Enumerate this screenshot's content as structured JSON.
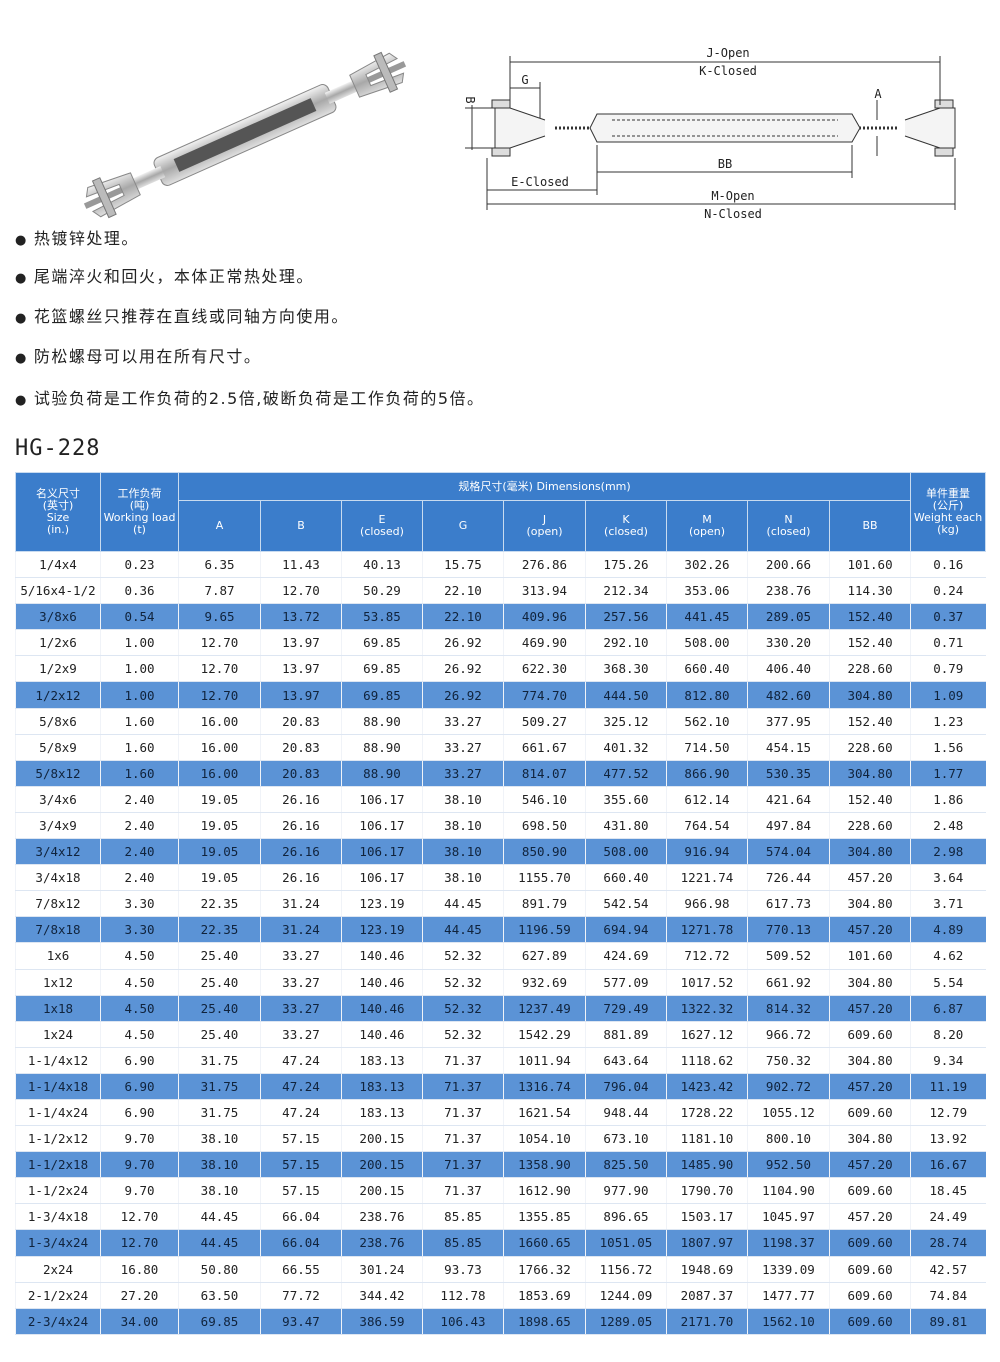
{
  "diagram": {
    "j_open": "J-Open",
    "k_closed": "K-Closed",
    "g": "G",
    "b": "B",
    "a": "A",
    "bb": "BB",
    "e_closed": "E-Closed",
    "m_open": "M-Open",
    "n_closed": "N-Closed"
  },
  "bullets": [
    "热镀锌处理。",
    "尾端淬火和回火，本体正常热处理。",
    "花篮螺丝只推荐在直线或同轴方向使用。",
    "防松螺母可以用在所有尺寸。",
    "试验负荷是工作负荷的2.5倍,破断负荷是工作负荷的5倍。"
  ],
  "title": "HG-228",
  "table": {
    "header": {
      "size": [
        "名义尺寸",
        "(英寸)",
        "Size",
        "(in.)"
      ],
      "load": [
        "工作负荷",
        "(吨)",
        "Working load",
        "(t)"
      ],
      "dimensions": "规格尺寸(毫米) Dimensions(mm)",
      "columns": [
        [
          "A"
        ],
        [
          "B"
        ],
        [
          "E",
          "(closed)"
        ],
        [
          "G"
        ],
        [
          "J",
          "(open)"
        ],
        [
          "K",
          "(closed)"
        ],
        [
          "M",
          "(open)"
        ],
        [
          "N",
          "(closed)"
        ],
        [
          "BB"
        ]
      ],
      "weight": [
        "单件重量",
        "(公斤)",
        "Weight each",
        "(kg)"
      ]
    },
    "rows": [
      [
        "1/4x4",
        "0.23",
        "6.35",
        "11.43",
        "40.13",
        "15.75",
        "276.86",
        "175.26",
        "302.26",
        "200.66",
        "101.60",
        "0.16"
      ],
      [
        "5/16x4-1/2",
        "0.36",
        "7.87",
        "12.70",
        "50.29",
        "22.10",
        "313.94",
        "212.34",
        "353.06",
        "238.76",
        "114.30",
        "0.24"
      ],
      [
        "3/8x6",
        "0.54",
        "9.65",
        "13.72",
        "53.85",
        "22.10",
        "409.96",
        "257.56",
        "441.45",
        "289.05",
        "152.40",
        "0.37"
      ],
      [
        "1/2x6",
        "1.00",
        "12.70",
        "13.97",
        "69.85",
        "26.92",
        "469.90",
        "292.10",
        "508.00",
        "330.20",
        "152.40",
        "0.71"
      ],
      [
        "1/2x9",
        "1.00",
        "12.70",
        "13.97",
        "69.85",
        "26.92",
        "622.30",
        "368.30",
        "660.40",
        "406.40",
        "228.60",
        "0.79"
      ],
      [
        "1/2x12",
        "1.00",
        "12.70",
        "13.97",
        "69.85",
        "26.92",
        "774.70",
        "444.50",
        "812.80",
        "482.60",
        "304.80",
        "1.09"
      ],
      [
        "5/8x6",
        "1.60",
        "16.00",
        "20.83",
        "88.90",
        "33.27",
        "509.27",
        "325.12",
        "562.10",
        "377.95",
        "152.40",
        "1.23"
      ],
      [
        "5/8x9",
        "1.60",
        "16.00",
        "20.83",
        "88.90",
        "33.27",
        "661.67",
        "401.32",
        "714.50",
        "454.15",
        "228.60",
        "1.56"
      ],
      [
        "5/8x12",
        "1.60",
        "16.00",
        "20.83",
        "88.90",
        "33.27",
        "814.07",
        "477.52",
        "866.90",
        "530.35",
        "304.80",
        "1.77"
      ],
      [
        "3/4x6",
        "2.40",
        "19.05",
        "26.16",
        "106.17",
        "38.10",
        "546.10",
        "355.60",
        "612.14",
        "421.64",
        "152.40",
        "1.86"
      ],
      [
        "3/4x9",
        "2.40",
        "19.05",
        "26.16",
        "106.17",
        "38.10",
        "698.50",
        "431.80",
        "764.54",
        "497.84",
        "228.60",
        "2.48"
      ],
      [
        "3/4x12",
        "2.40",
        "19.05",
        "26.16",
        "106.17",
        "38.10",
        "850.90",
        "508.00",
        "916.94",
        "574.04",
        "304.80",
        "2.98"
      ],
      [
        "3/4x18",
        "2.40",
        "19.05",
        "26.16",
        "106.17",
        "38.10",
        "1155.70",
        "660.40",
        "1221.74",
        "726.44",
        "457.20",
        "3.64"
      ],
      [
        "7/8x12",
        "3.30",
        "22.35",
        "31.24",
        "123.19",
        "44.45",
        "891.79",
        "542.54",
        "966.98",
        "617.73",
        "304.80",
        "3.71"
      ],
      [
        "7/8x18",
        "3.30",
        "22.35",
        "31.24",
        "123.19",
        "44.45",
        "1196.59",
        "694.94",
        "1271.78",
        "770.13",
        "457.20",
        "4.89"
      ],
      [
        "1x6",
        "4.50",
        "25.40",
        "33.27",
        "140.46",
        "52.32",
        "627.89",
        "424.69",
        "712.72",
        "509.52",
        "101.60",
        "4.62"
      ],
      [
        "1x12",
        "4.50",
        "25.40",
        "33.27",
        "140.46",
        "52.32",
        "932.69",
        "577.09",
        "1017.52",
        "661.92",
        "304.80",
        "5.54"
      ],
      [
        "1x18",
        "4.50",
        "25.40",
        "33.27",
        "140.46",
        "52.32",
        "1237.49",
        "729.49",
        "1322.32",
        "814.32",
        "457.20",
        "6.87"
      ],
      [
        "1x24",
        "4.50",
        "25.40",
        "33.27",
        "140.46",
        "52.32",
        "1542.29",
        "881.89",
        "1627.12",
        "966.72",
        "609.60",
        "8.20"
      ],
      [
        "1-1/4x12",
        "6.90",
        "31.75",
        "47.24",
        "183.13",
        "71.37",
        "1011.94",
        "643.64",
        "1118.62",
        "750.32",
        "304.80",
        "9.34"
      ],
      [
        "1-1/4x18",
        "6.90",
        "31.75",
        "47.24",
        "183.13",
        "71.37",
        "1316.74",
        "796.04",
        "1423.42",
        "902.72",
        "457.20",
        "11.19"
      ],
      [
        "1-1/4x24",
        "6.90",
        "31.75",
        "47.24",
        "183.13",
        "71.37",
        "1621.54",
        "948.44",
        "1728.22",
        "1055.12",
        "609.60",
        "12.79"
      ],
      [
        "1-1/2x12",
        "9.70",
        "38.10",
        "57.15",
        "200.15",
        "71.37",
        "1054.10",
        "673.10",
        "1181.10",
        "800.10",
        "304.80",
        "13.92"
      ],
      [
        "1-1/2x18",
        "9.70",
        "38.10",
        "57.15",
        "200.15",
        "71.37",
        "1358.90",
        "825.50",
        "1485.90",
        "952.50",
        "457.20",
        "16.67"
      ],
      [
        "1-1/2x24",
        "9.70",
        "38.10",
        "57.15",
        "200.15",
        "71.37",
        "1612.90",
        "977.90",
        "1790.70",
        "1104.90",
        "609.60",
        "18.45"
      ],
      [
        "1-3/4x18",
        "12.70",
        "44.45",
        "66.04",
        "238.76",
        "85.85",
        "1355.85",
        "896.65",
        "1503.17",
        "1045.97",
        "457.20",
        "24.49"
      ],
      [
        "1-3/4x24",
        "12.70",
        "44.45",
        "66.04",
        "238.76",
        "85.85",
        "1660.65",
        "1051.05",
        "1807.97",
        "1198.37",
        "609.60",
        "28.74"
      ],
      [
        "2x24",
        "16.80",
        "50.80",
        "66.55",
        "301.24",
        "93.73",
        "1766.32",
        "1156.72",
        "1948.69",
        "1339.09",
        "609.60",
        "42.57"
      ],
      [
        "2-1/2x24",
        "27.20",
        "63.50",
        "77.72",
        "344.42",
        "112.78",
        "1853.69",
        "1244.09",
        "2087.37",
        "1477.77",
        "609.60",
        "74.84"
      ],
      [
        "2-3/4x24",
        "34.00",
        "69.85",
        "93.47",
        "386.59",
        "106.43",
        "1898.65",
        "1289.05",
        "2171.70",
        "1562.10",
        "609.60",
        "89.81"
      ]
    ]
  }
}
